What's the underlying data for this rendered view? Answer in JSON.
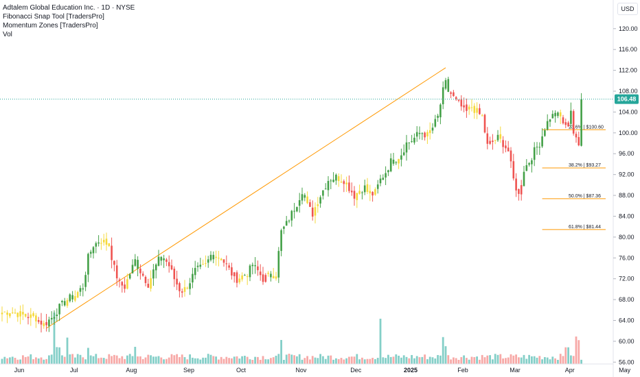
{
  "legend": {
    "symbol": "Adtalem Global Education Inc. · 1D · NYSE",
    "indicator1": "Fibonacci Snap Tool [TradersPro]",
    "indicator2": "Momentum Zones [TradersPro]",
    "volume": "Vol"
  },
  "currency": "USD",
  "last_price": "106.48",
  "colors": {
    "up": "#43a047",
    "down": "#ef5350",
    "neutral": "#f5d93b",
    "vol_up": "#84cfc8",
    "vol_down": "#f7a9a7",
    "vol_spike": "#81c6c2",
    "trendline": "#ff9800",
    "fib": "#ff9800",
    "price_line": "#26a69a",
    "last_label_bg": "#26a69a"
  },
  "chart_data": {
    "type": "candlestick",
    "ylim": [
      55,
      123
    ],
    "y_ticks": [
      "56.00",
      "60.00",
      "64.00",
      "68.00",
      "72.00",
      "76.00",
      "80.00",
      "84.00",
      "88.00",
      "92.00",
      "96.00",
      "100.00",
      "104.00",
      "108.00",
      "112.00",
      "116.00",
      "120.00"
    ],
    "x_ticks": [
      {
        "label": "Jun",
        "day": 0
      },
      {
        "label": "Jul",
        "day": 21
      },
      {
        "label": "Aug",
        "day": 43
      },
      {
        "label": "Sep",
        "day": 65
      },
      {
        "label": "Oct",
        "day": 85
      },
      {
        "label": "Nov",
        "day": 108
      },
      {
        "label": "Dec",
        "day": 129
      },
      {
        "label": "2025",
        "day": 150
      },
      {
        "label": "Feb",
        "day": 170
      },
      {
        "label": "Mar",
        "day": 190
      },
      {
        "label": "Apr",
        "day": 211
      },
      {
        "label": "May",
        "day": 232
      }
    ],
    "trend_line": {
      "from": {
        "day": 17,
        "price": 62.5
      },
      "to": {
        "day": 170,
        "price": 112.5
      }
    },
    "fib_levels": [
      {
        "label": "23.6% | $100.60",
        "price": 100.6
      },
      {
        "label": "38.2% | $93.27",
        "price": 93.27
      },
      {
        "label": "50.0% | $87.36",
        "price": 87.36
      },
      {
        "label": "61.8% | $81.44",
        "price": 81.44
      }
    ],
    "fib_start_day": 207,
    "current_price": 106.48,
    "anchors": [
      [
        0,
        65.5
      ],
      [
        3,
        65.8
      ],
      [
        8,
        65.0
      ],
      [
        13,
        64.5
      ],
      [
        16,
        63.2
      ],
      [
        19,
        64.5
      ],
      [
        22,
        66.5
      ],
      [
        25,
        68.0
      ],
      [
        28,
        68.8
      ],
      [
        31,
        70.5
      ],
      [
        33,
        76.0
      ],
      [
        35,
        78.5
      ],
      [
        38,
        79.3
      ],
      [
        41,
        78.5
      ],
      [
        43,
        74.0
      ],
      [
        45,
        71.0
      ],
      [
        47,
        70.5
      ],
      [
        49,
        73.0
      ],
      [
        51,
        75.5
      ],
      [
        53,
        73.5
      ],
      [
        56,
        71.0
      ],
      [
        58,
        73.5
      ],
      [
        60,
        75.5
      ],
      [
        62,
        76.0
      ],
      [
        64,
        74.5
      ],
      [
        66,
        72.0
      ],
      [
        68,
        70.0
      ],
      [
        70,
        70.0
      ],
      [
        72,
        71.5
      ],
      [
        74,
        73.5
      ],
      [
        76,
        74.0
      ],
      [
        78,
        74.5
      ],
      [
        80,
        76.5
      ],
      [
        82,
        76.5
      ],
      [
        84,
        76.0
      ],
      [
        86,
        74.5
      ],
      [
        88,
        73.0
      ],
      [
        90,
        72.0
      ],
      [
        92,
        72.5
      ],
      [
        94,
        73.0
      ],
      [
        96,
        74.5
      ],
      [
        98,
        73.5
      ],
      [
        100,
        72.0
      ],
      [
        102,
        72.5
      ],
      [
        105,
        73.0
      ],
      [
        107,
        81.0
      ],
      [
        109,
        82.5
      ],
      [
        111,
        84.5
      ],
      [
        113,
        86.5
      ],
      [
        115,
        89.0
      ],
      [
        117,
        86.0
      ],
      [
        119,
        84.5
      ],
      [
        121,
        87.0
      ],
      [
        123,
        89.0
      ],
      [
        125,
        91.0
      ],
      [
        128,
        91.5
      ],
      [
        131,
        91.0
      ],
      [
        133,
        89.5
      ],
      [
        135,
        88.0
      ],
      [
        137,
        89.0
      ],
      [
        139,
        89.5
      ],
      [
        141,
        88.0
      ],
      [
        143,
        88.5
      ],
      [
        145,
        91.0
      ],
      [
        147,
        92.5
      ],
      [
        149,
        94.5
      ],
      [
        151,
        95.0
      ],
      [
        153,
        96.0
      ],
      [
        155,
        98.0
      ],
      [
        157,
        98.5
      ],
      [
        159,
        99.5
      ],
      [
        161,
        100.0
      ],
      [
        163,
        99.5
      ],
      [
        165,
        101.0
      ],
      [
        167,
        103.0
      ],
      [
        169,
        108.0
      ],
      [
        170,
        109.5
      ],
      [
        171,
        108.0
      ],
      [
        172,
        107.5
      ],
      [
        174,
        106.0
      ],
      [
        176,
        105.0
      ],
      [
        178,
        104.0
      ],
      [
        180,
        105.0
      ],
      [
        182,
        104.0
      ],
      [
        184,
        103.0
      ],
      [
        186,
        97.5
      ],
      [
        188,
        98.5
      ],
      [
        190,
        99.0
      ],
      [
        192,
        98.0
      ],
      [
        194,
        96.5
      ],
      [
        196,
        91.0
      ],
      [
        198,
        88.0
      ],
      [
        200,
        93.0
      ],
      [
        202,
        94.5
      ],
      [
        204,
        96.5
      ],
      [
        206,
        98.0
      ],
      [
        208,
        101.0
      ],
      [
        210,
        103.0
      ],
      [
        212,
        103.5
      ],
      [
        214,
        103.0
      ],
      [
        216,
        101.0
      ],
      [
        217,
        102.5
      ],
      [
        218,
        104.5
      ],
      [
        219,
        100.0
      ],
      [
        220,
        98.5
      ],
      [
        221,
        97.5
      ],
      [
        222,
        106.48
      ]
    ],
    "volume_scale_max": 73,
    "volume_notes": "volume bars in bottom pane; spikes near Jun 20 and Jan 2"
  }
}
